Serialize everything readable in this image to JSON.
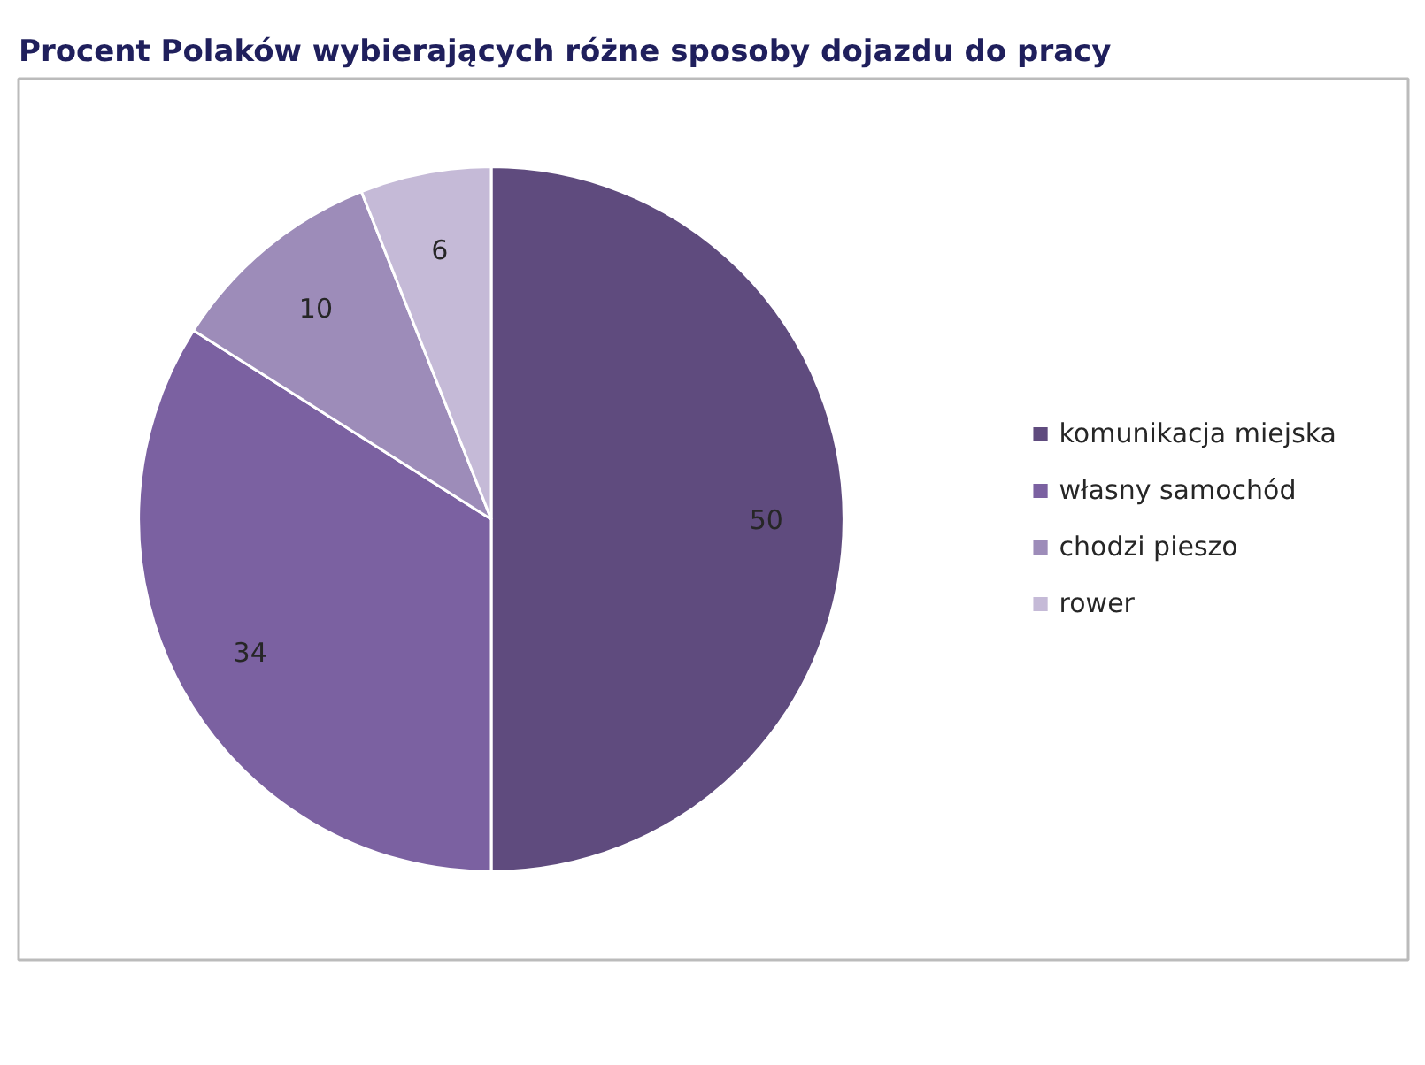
{
  "chart_data": {
    "type": "pie",
    "title": "Procent Polaków wybierających różne sposoby dojazdu do pracy",
    "categories": [
      "komunikacja miejska",
      "własny samochód",
      "chodzi pieszo",
      "rower"
    ],
    "values": [
      50,
      34,
      10,
      6
    ],
    "colors": [
      "#5f4b7e",
      "#7b61a1",
      "#9d8cb9",
      "#c5bad7"
    ],
    "data_labels": true,
    "legend": "right"
  }
}
